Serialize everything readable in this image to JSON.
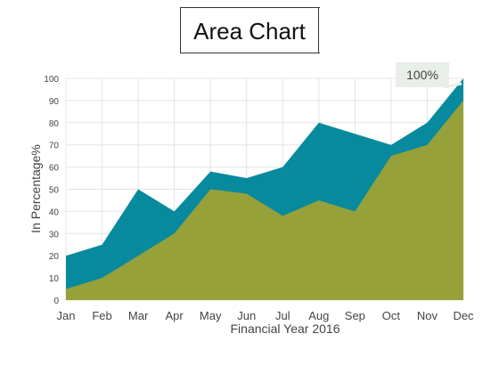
{
  "title": "Area Chart",
  "chart_data": {
    "type": "area",
    "categories": [
      "Jan",
      "Feb",
      "Mar",
      "Apr",
      "May",
      "Jun",
      "Jul",
      "Aug",
      "Sep",
      "Oct",
      "Nov",
      "Dec"
    ],
    "series": [
      {
        "values": [
          20,
          25,
          50,
          40,
          58,
          55,
          60,
          80,
          75,
          70,
          80,
          100
        ]
      },
      {
        "values": [
          5,
          10,
          20,
          30,
          50,
          48,
          38,
          45,
          40,
          65,
          70,
          90
        ]
      }
    ],
    "colors": [
      "#088a9e",
      "#96a13a"
    ],
    "title": "Area Chart",
    "xlabel": "Financial Year 2016",
    "ylabel": "In Percentage%",
    "ylim": [
      0,
      100
    ],
    "yticks": [
      0,
      10,
      20,
      30,
      40,
      50,
      60,
      70,
      80,
      90,
      100
    ],
    "grid": true,
    "annotation": {
      "text": "100%",
      "category": "Dec",
      "value": 100
    }
  }
}
